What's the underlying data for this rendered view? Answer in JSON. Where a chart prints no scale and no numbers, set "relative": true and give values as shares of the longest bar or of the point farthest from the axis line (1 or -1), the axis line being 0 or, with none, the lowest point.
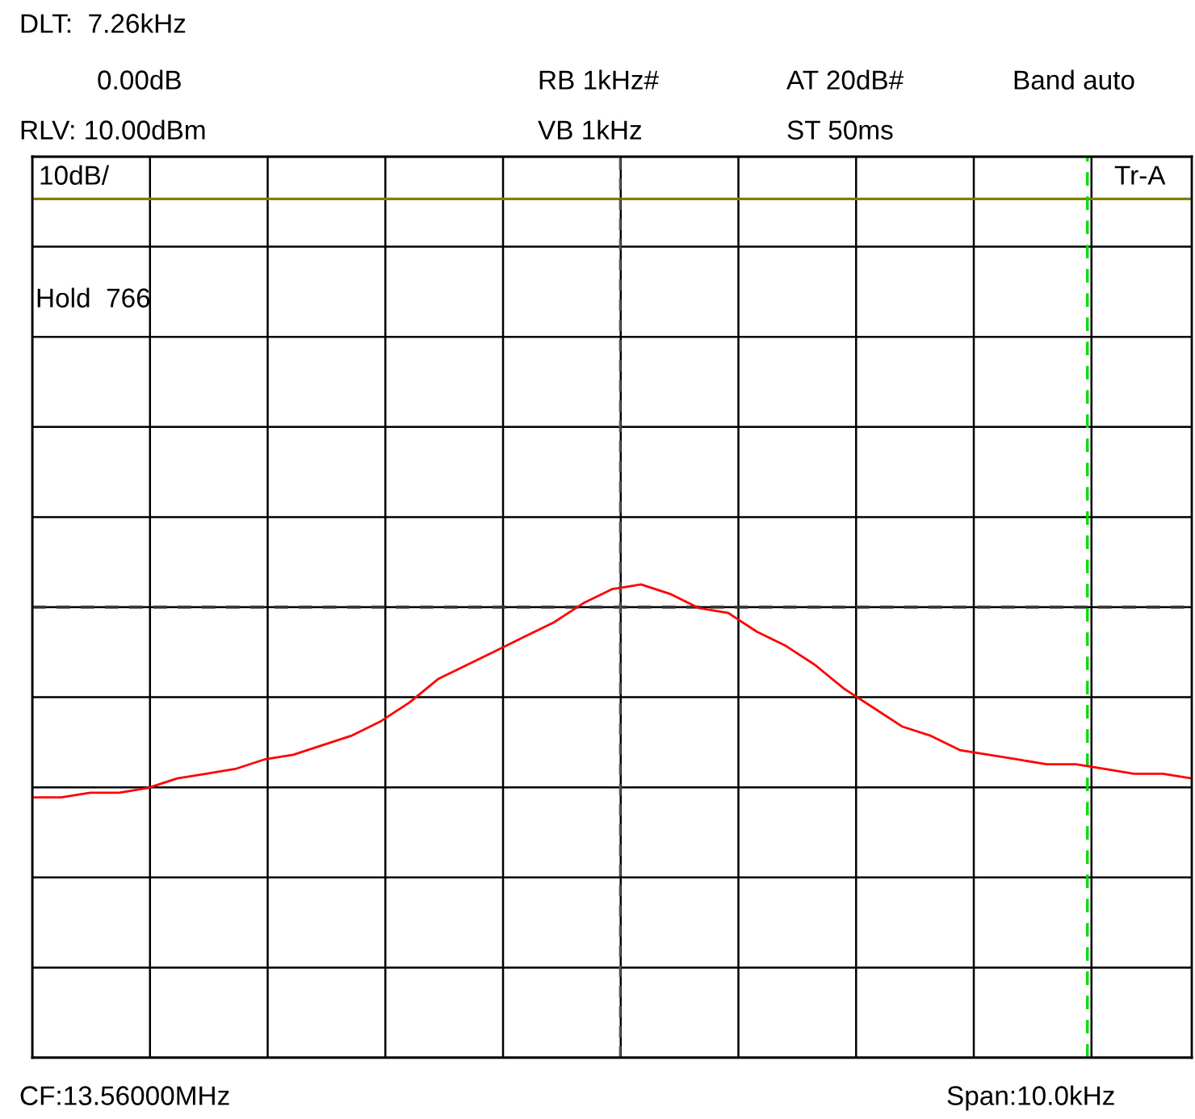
{
  "chart_data": {
    "type": "line",
    "relative": true,
    "grid": true,
    "legend": false,
    "marker": "none",
    "line_style": "solid",
    "categories": [
      null,
      null,
      null,
      null,
      null,
      null,
      null,
      null,
      null,
      null,
      null,
      null,
      null,
      null,
      null,
      null,
      null,
      null,
      null,
      null,
      null,
      null,
      null,
      null,
      null,
      null,
      null,
      null,
      null,
      null,
      null,
      null,
      null,
      null,
      null,
      null,
      null,
      null,
      null,
      null,
      null
    ],
    "series": [
      {
        "color": "#ff0000",
        "values": [
          0.55,
          0.55,
          0.56,
          0.56,
          0.57,
          0.59,
          0.6,
          0.61,
          0.63,
          0.64,
          0.66,
          0.68,
          0.71,
          0.75,
          0.8,
          0.83,
          0.86,
          0.89,
          0.92,
          0.96,
          0.99,
          1,
          0.98,
          0.95,
          0.94,
          0.9,
          0.87,
          0.83,
          0.78,
          0.74,
          0.7,
          0.68,
          0.65,
          0.64,
          0.63,
          0.62,
          0.62,
          0.61,
          0.6,
          0.6,
          0.59
        ]
      }
    ],
    "ref_lines": [
      {
        "axis": "y",
        "value": 0.952,
        "color": "#333333",
        "line_style": "dashed"
      }
    ],
    "annotations": [
      "DLT:  7.26kHz",
      "0.00dB",
      "RB 1kHz#",
      "AT 20dB#",
      "Band auto",
      "RLV: 10.00dBm",
      "VB 1kHz",
      "ST 50ms",
      "10dB/",
      "Tr-A",
      "Hold  766",
      "CF:13.56000MHz",
      "Span:10.0kHz"
    ]
  }
}
